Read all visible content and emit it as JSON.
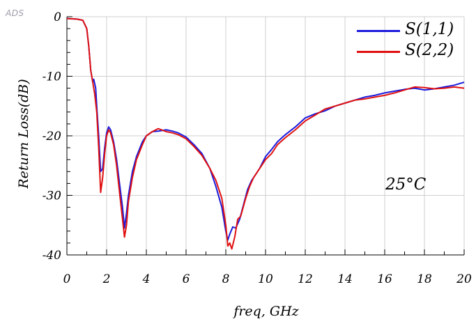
{
  "badge": "ADS",
  "chart_data": {
    "type": "line",
    "xlabel": "freq, GHz",
    "ylabel": "Return Loss(dB)",
    "annotation": "25°C",
    "xlim": [
      0,
      20
    ],
    "ylim": [
      -40,
      0
    ],
    "x_ticks": [
      0,
      2,
      4,
      6,
      8,
      10,
      12,
      14,
      16,
      18,
      20
    ],
    "y_ticks": [
      0,
      -10,
      -20,
      -30,
      -40
    ],
    "grid": true,
    "legend_position": "top-right",
    "series": [
      {
        "name": "S(1,1)",
        "color": "#1a1adc",
        "points": [
          [
            0,
            -0.3
          ],
          [
            0.5,
            -0.4
          ],
          [
            0.8,
            -0.6
          ],
          [
            1.0,
            -2
          ],
          [
            1.1,
            -5
          ],
          [
            1.2,
            -9
          ],
          [
            1.3,
            -11
          ],
          [
            1.35,
            -10.5
          ],
          [
            1.45,
            -12
          ],
          [
            1.5,
            -15
          ],
          [
            1.6,
            -20
          ],
          [
            1.7,
            -26
          ],
          [
            1.8,
            -25.5
          ],
          [
            1.9,
            -22
          ],
          [
            2.0,
            -19.5
          ],
          [
            2.1,
            -18.5
          ],
          [
            2.2,
            -19
          ],
          [
            2.35,
            -21
          ],
          [
            2.5,
            -24
          ],
          [
            2.65,
            -28
          ],
          [
            2.8,
            -32
          ],
          [
            2.9,
            -35.5
          ],
          [
            3.0,
            -33
          ],
          [
            3.1,
            -30
          ],
          [
            3.3,
            -26
          ],
          [
            3.5,
            -23.5
          ],
          [
            3.8,
            -21
          ],
          [
            4.0,
            -20
          ],
          [
            4.3,
            -19.3
          ],
          [
            4.6,
            -19.2
          ],
          [
            5.0,
            -19
          ],
          [
            5.3,
            -19.2
          ],
          [
            5.6,
            -19.5
          ],
          [
            6.0,
            -20.2
          ],
          [
            6.4,
            -21.5
          ],
          [
            6.8,
            -23
          ],
          [
            7.2,
            -25.5
          ],
          [
            7.5,
            -28.5
          ],
          [
            7.8,
            -32
          ],
          [
            8.0,
            -36
          ],
          [
            8.1,
            -37.5
          ],
          [
            8.2,
            -36.5
          ],
          [
            8.35,
            -35.3
          ],
          [
            8.5,
            -35.5
          ],
          [
            8.7,
            -34
          ],
          [
            8.9,
            -31.5
          ],
          [
            9.1,
            -29
          ],
          [
            9.3,
            -27.5
          ],
          [
            9.5,
            -26.5
          ],
          [
            9.7,
            -25.5
          ],
          [
            10.0,
            -23.5
          ],
          [
            10.3,
            -22.3
          ],
          [
            10.6,
            -21
          ],
          [
            11.0,
            -19.8
          ],
          [
            11.5,
            -18.5
          ],
          [
            12.0,
            -17
          ],
          [
            12.5,
            -16.3
          ],
          [
            13.0,
            -15.8
          ],
          [
            13.5,
            -15
          ],
          [
            14.0,
            -14.5
          ],
          [
            14.5,
            -14
          ],
          [
            15.0,
            -13.5
          ],
          [
            15.5,
            -13.2
          ],
          [
            16.0,
            -12.8
          ],
          [
            16.5,
            -12.5
          ],
          [
            17.0,
            -12.2
          ],
          [
            17.5,
            -12
          ],
          [
            18.0,
            -12.3
          ],
          [
            18.5,
            -12.1
          ],
          [
            19.0,
            -11.8
          ],
          [
            19.5,
            -11.5
          ],
          [
            20.0,
            -11
          ]
        ]
      },
      {
        "name": "S(2,2)",
        "color": "#e01010",
        "points": [
          [
            0,
            -0.3
          ],
          [
            0.5,
            -0.4
          ],
          [
            0.8,
            -0.6
          ],
          [
            1.0,
            -2
          ],
          [
            1.1,
            -5
          ],
          [
            1.2,
            -9
          ],
          [
            1.3,
            -11
          ],
          [
            1.4,
            -13
          ],
          [
            1.5,
            -16
          ],
          [
            1.6,
            -22
          ],
          [
            1.7,
            -29.5
          ],
          [
            1.8,
            -27
          ],
          [
            1.9,
            -23
          ],
          [
            2.0,
            -20
          ],
          [
            2.1,
            -19
          ],
          [
            2.2,
            -19.5
          ],
          [
            2.35,
            -21.5
          ],
          [
            2.5,
            -25
          ],
          [
            2.65,
            -29.5
          ],
          [
            2.8,
            -34
          ],
          [
            2.9,
            -37
          ],
          [
            3.0,
            -35
          ],
          [
            3.1,
            -31
          ],
          [
            3.3,
            -27
          ],
          [
            3.5,
            -24
          ],
          [
            3.8,
            -21.5
          ],
          [
            4.0,
            -20
          ],
          [
            4.3,
            -19.3
          ],
          [
            4.6,
            -18.8
          ],
          [
            5.0,
            -19.3
          ],
          [
            5.3,
            -19.5
          ],
          [
            5.6,
            -19.8
          ],
          [
            6.0,
            -20.5
          ],
          [
            6.4,
            -21.8
          ],
          [
            6.8,
            -23.3
          ],
          [
            7.2,
            -25.5
          ],
          [
            7.5,
            -27.5
          ],
          [
            7.8,
            -30.5
          ],
          [
            8.0,
            -35
          ],
          [
            8.1,
            -38.5
          ],
          [
            8.2,
            -38
          ],
          [
            8.3,
            -39
          ],
          [
            8.45,
            -37
          ],
          [
            8.6,
            -34
          ],
          [
            8.75,
            -33.5
          ],
          [
            9.0,
            -30.5
          ],
          [
            9.2,
            -28.5
          ],
          [
            9.4,
            -27
          ],
          [
            9.6,
            -26
          ],
          [
            9.8,
            -25
          ],
          [
            10.0,
            -24
          ],
          [
            10.3,
            -23
          ],
          [
            10.6,
            -21.5
          ],
          [
            11.0,
            -20.3
          ],
          [
            11.5,
            -19
          ],
          [
            12.0,
            -17.5
          ],
          [
            12.5,
            -16.5
          ],
          [
            13.0,
            -15.5
          ],
          [
            13.5,
            -15
          ],
          [
            14.0,
            -14.5
          ],
          [
            14.5,
            -14
          ],
          [
            15.0,
            -13.8
          ],
          [
            15.5,
            -13.5
          ],
          [
            16.0,
            -13.2
          ],
          [
            16.5,
            -12.8
          ],
          [
            17.0,
            -12.3
          ],
          [
            17.5,
            -11.8
          ],
          [
            18.0,
            -11.9
          ],
          [
            18.5,
            -12.1
          ],
          [
            19.0,
            -12
          ],
          [
            19.5,
            -11.8
          ],
          [
            20.0,
            -12
          ]
        ]
      }
    ]
  }
}
